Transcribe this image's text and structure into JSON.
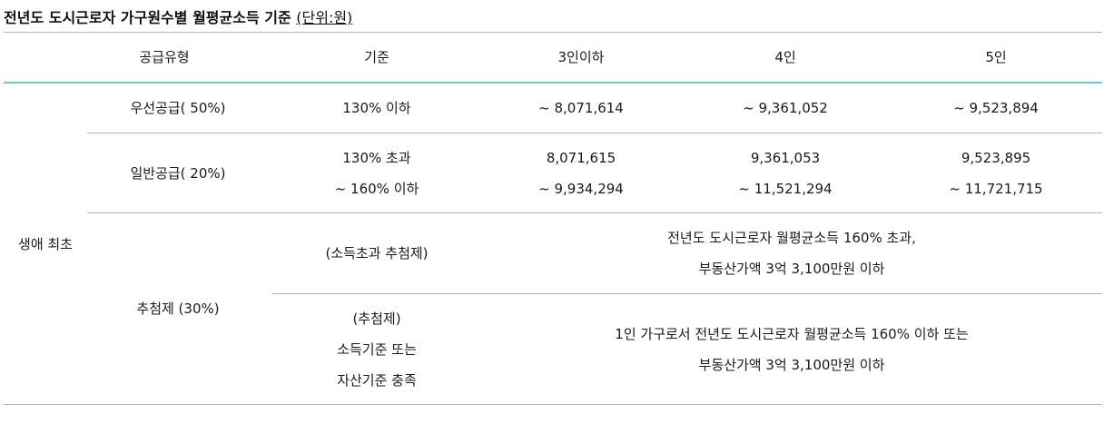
{
  "title": "전년도 도시근로자 가구원수별 월평균소득 기준",
  "unit": "(단위:원)",
  "header": {
    "type": "공급유형",
    "criterion": "기준",
    "c3": "3인이하",
    "c4": "4인",
    "c5": "5인"
  },
  "category": "생애 최초",
  "rows": {
    "priority": {
      "label": "우선공급( 50%)",
      "criterion": "130% 이하",
      "v3": "~ 8,071,614",
      "v4": "~ 9,361,052",
      "v5": "~ 9,523,894"
    },
    "general": {
      "label": "일반공급( 20%)",
      "criterion_1": "130% 초과",
      "criterion_2": "~ 160% 이하",
      "v3_1": "8,071,615",
      "v3_2": "~ 9,934,294",
      "v4_1": "9,361,053",
      "v4_2": "~ 11,521,294",
      "v5_1": "9,523,895",
      "v5_2": "~ 11,721,715"
    },
    "lottery": {
      "label": "추첨제 (30%)",
      "sub1_criterion": "(소득초과 추첨제)",
      "sub1_desc_1": "전년도 도시근로자 월평균소득 160% 초과,",
      "sub1_desc_2": "부동산가액 3억 3,100만원 이하",
      "sub2_criterion_1": "(추첨제)",
      "sub2_criterion_2": "소득기준 또는",
      "sub2_criterion_3": "자산기준 충족",
      "sub2_desc_1": "1인 가구로서 전년도 도시근로자 월평균소득 160% 이하 또는",
      "sub2_desc_2": "부동산가액 3억 3,100만원 이하"
    }
  }
}
